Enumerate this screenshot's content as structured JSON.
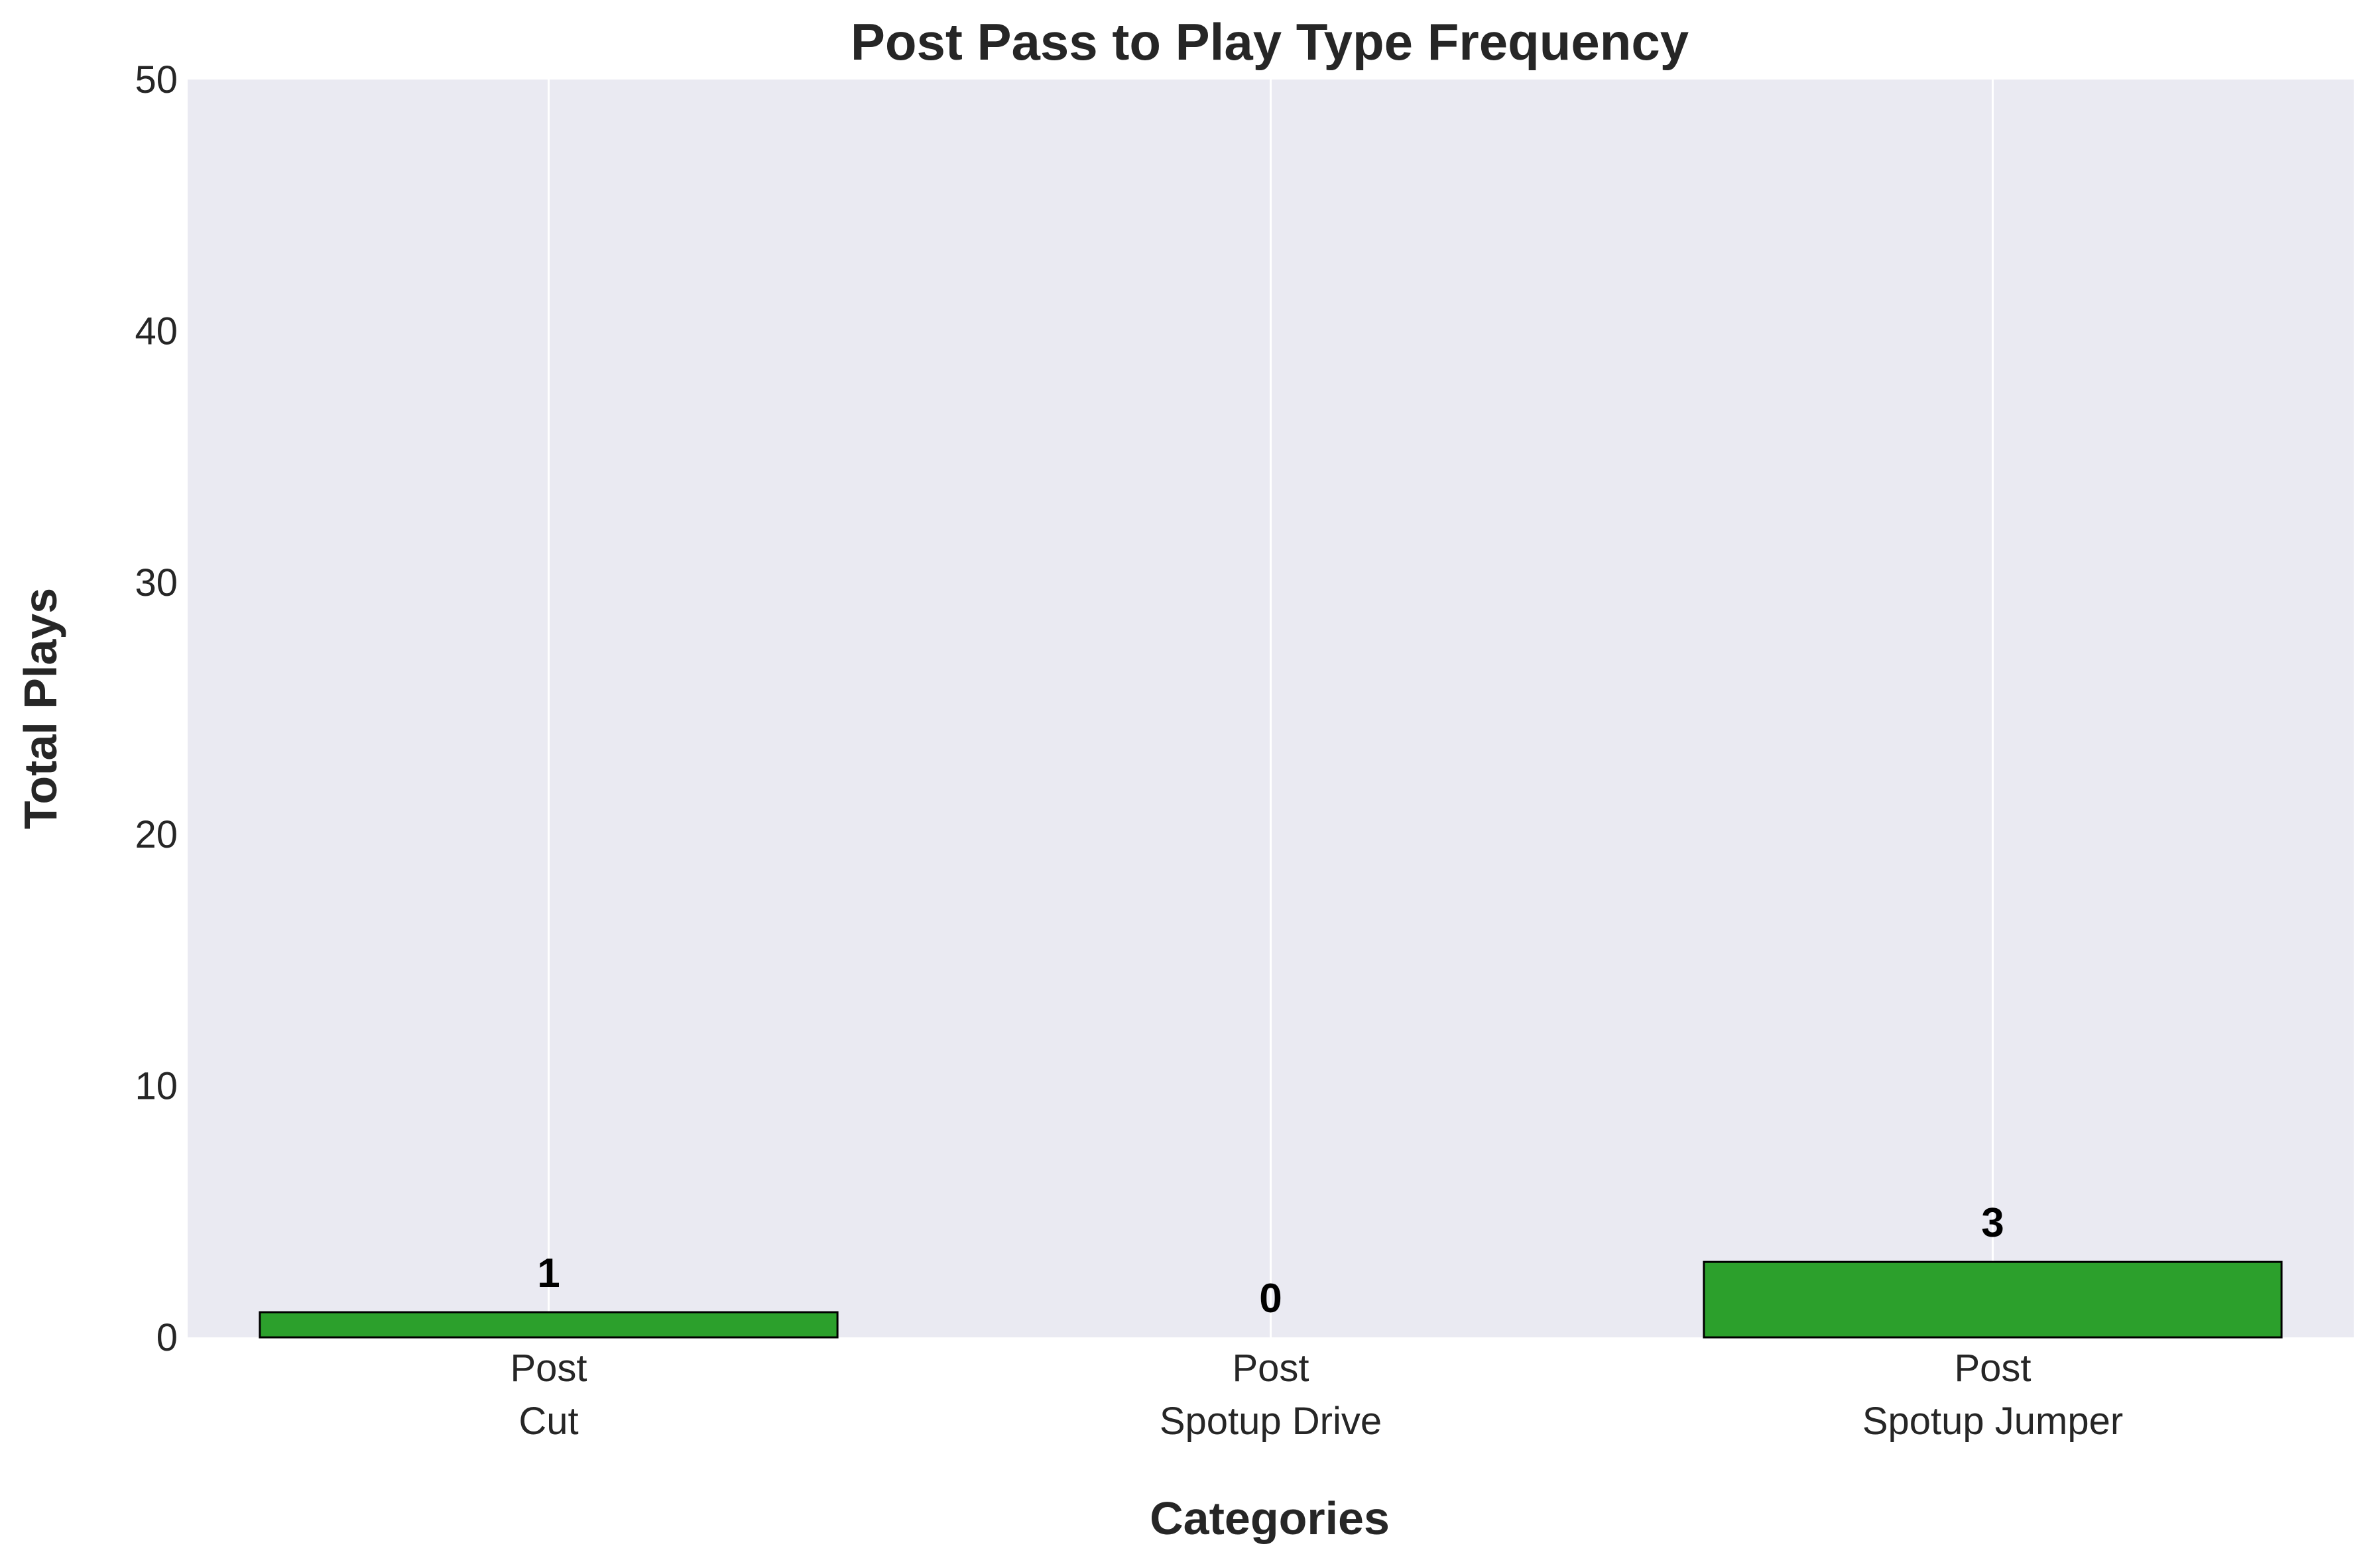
{
  "chart_data": {
    "type": "bar",
    "title": "Post Pass to Play Type Frequency",
    "xlabel": "Categories",
    "ylabel": "Total Plays",
    "categories": [
      [
        "Post",
        "Cut"
      ],
      [
        "Post",
        "Spotup Drive"
      ],
      [
        "Post",
        "Spotup Jumper"
      ]
    ],
    "values": [
      1,
      0,
      3
    ],
    "data_labels": [
      "1",
      "0",
      "3"
    ],
    "ylim": [
      0,
      50
    ],
    "yticks": [
      0,
      10,
      20,
      30,
      40,
      50
    ],
    "ytick_labels": [
      "0",
      "10",
      "20",
      "30",
      "40",
      "50"
    ],
    "grid": "vertical only",
    "legend": "none",
    "colors": {
      "bar": "#2ca02c",
      "bar_edge": "#000000",
      "plot_background": "#eaeaf2",
      "grid": "#ffffff"
    }
  }
}
